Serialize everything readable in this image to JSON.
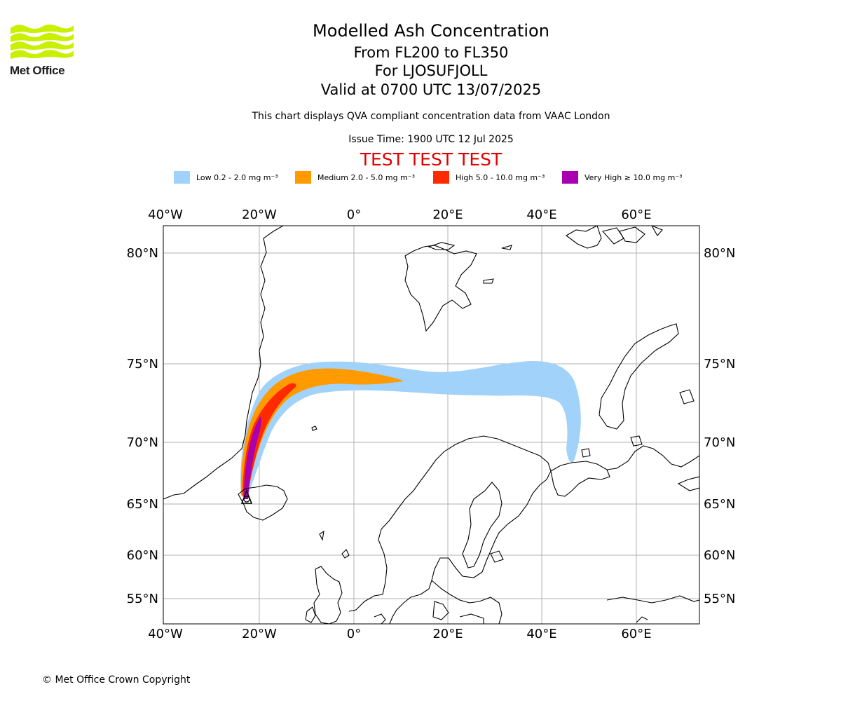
{
  "logo": {
    "name": "Met Office",
    "color": "#c8f000"
  },
  "header": {
    "title": "Modelled Ash Concentration",
    "levels": "From FL200 to FL350",
    "volcano": "For LJOSUFJOLL",
    "valid": "Valid at 0700 UTC 13/07/2025",
    "subtitle": "This chart displays QVA compliant concentration data from VAAC London",
    "issue_time": "Issue Time: 1900 UTC 12 Jul 2025",
    "test_banner": "TEST TEST TEST"
  },
  "legend": [
    {
      "label": "Low 0.2 - 2.0 mg m⁻³",
      "color": "#a0d2fa"
    },
    {
      "label": "Medium 2.0 - 5.0 mg m⁻³",
      "color": "#ff9a00"
    },
    {
      "label": "High 5.0 - 10.0 mg m⁻³",
      "color": "#ff2a00"
    },
    {
      "label": "Very High ≥ 10.0 mg m⁻³",
      "color": "#a800b0"
    }
  ],
  "map": {
    "lon_labels": [
      "40°W",
      "20°W",
      "0°",
      "20°E",
      "40°E",
      "60°E"
    ],
    "lat_labels": [
      "80°N",
      "75°N",
      "70°N",
      "65°N",
      "60°N",
      "55°N"
    ],
    "volcano_marker": "triangle"
  },
  "footer": {
    "copyright": "© Met Office Crown Copyright"
  }
}
